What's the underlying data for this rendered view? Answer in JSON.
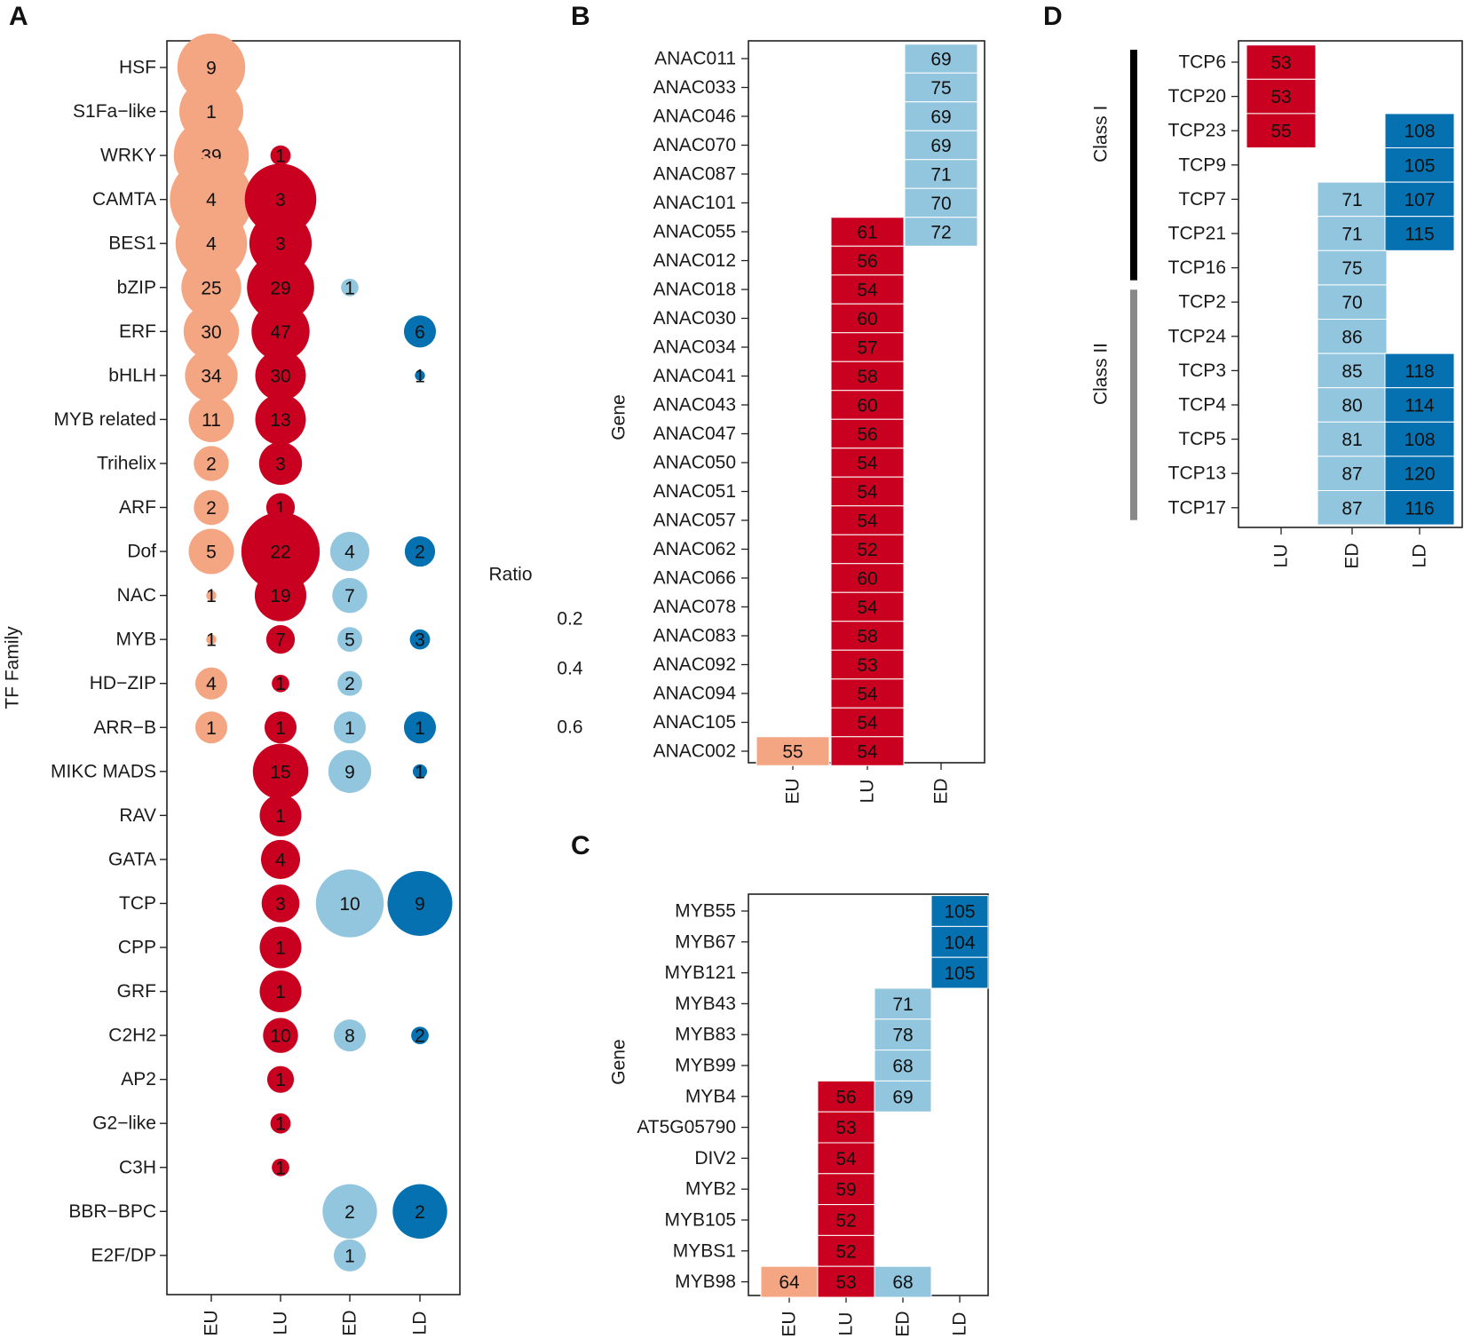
{
  "colors": {
    "EU": "#f4a582",
    "LU": "#ca0020",
    "ED": "#92c5de",
    "LD": "#0571b0"
  },
  "chart_data": [
    {
      "panel": "A",
      "type": "scatter",
      "subtype": "bubble",
      "ylabel": "TF Family",
      "xlabel": "",
      "size_legend_title": "Ratio",
      "size_legend_values": [
        "0.2",
        "0.4",
        "0.6"
      ],
      "x_categories": [
        "EU",
        "LU",
        "ED",
        "LD"
      ],
      "y_categories": [
        "HSF",
        "S1Fa−like",
        "WRKY",
        "CAMTA",
        "BES1",
        "bZIP",
        "ERF",
        "bHLH",
        "MYB related",
        "Trihelix",
        "ARF",
        "Dof",
        "NAC",
        "MYB",
        "HD−ZIP",
        "ARR−B",
        "MIKC MADS",
        "RAV",
        "GATA",
        "TCP",
        "CPP",
        "GRF",
        "C2H2",
        "AP2",
        "G2−like",
        "C3H",
        "BBR−BPC",
        "E2F/DP"
      ],
      "points": [
        {
          "x": "EU",
          "y": "HSF",
          "label": "9",
          "ratio": 0.45
        },
        {
          "x": "EU",
          "y": "S1Fa−like",
          "label": "1",
          "ratio": 0.4
        },
        {
          "x": "EU",
          "y": "WRKY",
          "label": "39",
          "ratio": 0.55
        },
        {
          "x": "LU",
          "y": "WRKY",
          "label": "1",
          "ratio": 0.04
        },
        {
          "x": "EU",
          "y": "CAMTA",
          "label": "4",
          "ratio": 0.67
        },
        {
          "x": "LU",
          "y": "CAMTA",
          "label": "3",
          "ratio": 0.5
        },
        {
          "x": "EU",
          "y": "BES1",
          "label": "4",
          "ratio": 0.5
        },
        {
          "x": "LU",
          "y": "BES1",
          "label": "3",
          "ratio": 0.38
        },
        {
          "x": "EU",
          "y": "bZIP",
          "label": "25",
          "ratio": 0.35
        },
        {
          "x": "LU",
          "y": "bZIP",
          "label": "29",
          "ratio": 0.44
        },
        {
          "x": "ED",
          "y": "bZIP",
          "label": "1",
          "ratio": 0.03
        },
        {
          "x": "EU",
          "y": "ERF",
          "label": "30",
          "ratio": 0.3
        },
        {
          "x": "LU",
          "y": "ERF",
          "label": "47",
          "ratio": 0.33
        },
        {
          "x": "LD",
          "y": "ERF",
          "label": "6",
          "ratio": 0.1
        },
        {
          "x": "EU",
          "y": "bHLH",
          "label": "34",
          "ratio": 0.27
        },
        {
          "x": "LU",
          "y": "bHLH",
          "label": "30",
          "ratio": 0.25
        },
        {
          "x": "LD",
          "y": "bHLH",
          "label": "1",
          "ratio": 0.01
        },
        {
          "x": "EU",
          "y": "MYB related",
          "label": "11",
          "ratio": 0.2
        },
        {
          "x": "LU",
          "y": "MYB related",
          "label": "13",
          "ratio": 0.25
        },
        {
          "x": "EU",
          "y": "Trihelix",
          "label": "2",
          "ratio": 0.12
        },
        {
          "x": "LU",
          "y": "Trihelix",
          "label": "3",
          "ratio": 0.18
        },
        {
          "x": "EU",
          "y": "ARF",
          "label": "2",
          "ratio": 0.12
        },
        {
          "x": "LU",
          "y": "ARF",
          "label": "1",
          "ratio": 0.08
        },
        {
          "x": "EU",
          "y": "Dof",
          "label": "5",
          "ratio": 0.2
        },
        {
          "x": "LU",
          "y": "Dof",
          "label": "22",
          "ratio": 0.6
        },
        {
          "x": "ED",
          "y": "Dof",
          "label": "4",
          "ratio": 0.15
        },
        {
          "x": "LD",
          "y": "Dof",
          "label": "2",
          "ratio": 0.09
        },
        {
          "x": "EU",
          "y": "NAC",
          "label": "1",
          "ratio": 0.01
        },
        {
          "x": "LU",
          "y": "NAC",
          "label": "19",
          "ratio": 0.26
        },
        {
          "x": "ED",
          "y": "NAC",
          "label": "7",
          "ratio": 0.12
        },
        {
          "x": "EU",
          "y": "MYB",
          "label": "1",
          "ratio": 0.01
        },
        {
          "x": "LU",
          "y": "MYB",
          "label": "7",
          "ratio": 0.08
        },
        {
          "x": "ED",
          "y": "MYB",
          "label": "5",
          "ratio": 0.06
        },
        {
          "x": "LD",
          "y": "MYB",
          "label": "3",
          "ratio": 0.04
        },
        {
          "x": "EU",
          "y": "HD−ZIP",
          "label": "4",
          "ratio": 0.1
        },
        {
          "x": "LU",
          "y": "HD−ZIP",
          "label": "1",
          "ratio": 0.03
        },
        {
          "x": "ED",
          "y": "HD−ZIP",
          "label": "2",
          "ratio": 0.06
        },
        {
          "x": "EU",
          "y": "ARR−B",
          "label": "1",
          "ratio": 0.1
        },
        {
          "x": "LU",
          "y": "ARR−B",
          "label": "1",
          "ratio": 0.1
        },
        {
          "x": "ED",
          "y": "ARR−B",
          "label": "1",
          "ratio": 0.1
        },
        {
          "x": "LD",
          "y": "ARR−B",
          "label": "1",
          "ratio": 0.1
        },
        {
          "x": "LU",
          "y": "MIKC MADS",
          "label": "15",
          "ratio": 0.3
        },
        {
          "x": "ED",
          "y": "MIKC MADS",
          "label": "9",
          "ratio": 0.18
        },
        {
          "x": "LD",
          "y": "MIKC MADS",
          "label": "1",
          "ratio": 0.02
        },
        {
          "x": "LU",
          "y": "RAV",
          "label": "1",
          "ratio": 0.17
        },
        {
          "x": "LU",
          "y": "GATA",
          "label": "4",
          "ratio": 0.15
        },
        {
          "x": "LU",
          "y": "TCP",
          "label": "3",
          "ratio": 0.14
        },
        {
          "x": "ED",
          "y": "TCP",
          "label": "10",
          "ratio": 0.45
        },
        {
          "x": "LD",
          "y": "TCP",
          "label": "9",
          "ratio": 0.41
        },
        {
          "x": "LU",
          "y": "CPP",
          "label": "1",
          "ratio": 0.17
        },
        {
          "x": "LU",
          "y": "GRF",
          "label": "1",
          "ratio": 0.17
        },
        {
          "x": "LU",
          "y": "C2H2",
          "label": "10",
          "ratio": 0.12
        },
        {
          "x": "ED",
          "y": "C2H2",
          "label": "8",
          "ratio": 0.1
        },
        {
          "x": "LD",
          "y": "C2H2",
          "label": "2",
          "ratio": 0.03
        },
        {
          "x": "LU",
          "y": "AP2",
          "label": "1",
          "ratio": 0.07
        },
        {
          "x": "LU",
          "y": "G2−like",
          "label": "1",
          "ratio": 0.04
        },
        {
          "x": "LU",
          "y": "C3H",
          "label": "1",
          "ratio": 0.03
        },
        {
          "x": "ED",
          "y": "BBR−BPC",
          "label": "2",
          "ratio": 0.29
        },
        {
          "x": "LD",
          "y": "BBR−BPC",
          "label": "2",
          "ratio": 0.29
        },
        {
          "x": "ED",
          "y": "E2F/DP",
          "label": "1",
          "ratio": 0.1
        }
      ]
    },
    {
      "panel": "B",
      "type": "heatmap",
      "ylabel": "Gene",
      "x_categories": [
        "EU",
        "LU",
        "ED"
      ],
      "y_categories": [
        "ANAC011",
        "ANAC033",
        "ANAC046",
        "ANAC070",
        "ANAC087",
        "ANAC101",
        "ANAC055",
        "ANAC012",
        "ANAC018",
        "ANAC030",
        "ANAC034",
        "ANAC041",
        "ANAC043",
        "ANAC047",
        "ANAC050",
        "ANAC051",
        "ANAC057",
        "ANAC062",
        "ANAC066",
        "ANAC078",
        "ANAC083",
        "ANAC092",
        "ANAC094",
        "ANAC105",
        "ANAC002"
      ],
      "cells": [
        {
          "x": "ED",
          "y": "ANAC011",
          "value": "69"
        },
        {
          "x": "ED",
          "y": "ANAC033",
          "value": "75"
        },
        {
          "x": "ED",
          "y": "ANAC046",
          "value": "69"
        },
        {
          "x": "ED",
          "y": "ANAC070",
          "value": "69"
        },
        {
          "x": "ED",
          "y": "ANAC087",
          "value": "71"
        },
        {
          "x": "ED",
          "y": "ANAC101",
          "value": "70"
        },
        {
          "x": "ED",
          "y": "ANAC055",
          "value": "72"
        },
        {
          "x": "LU",
          "y": "ANAC055",
          "value": "61"
        },
        {
          "x": "LU",
          "y": "ANAC012",
          "value": "56"
        },
        {
          "x": "LU",
          "y": "ANAC018",
          "value": "54"
        },
        {
          "x": "LU",
          "y": "ANAC030",
          "value": "60"
        },
        {
          "x": "LU",
          "y": "ANAC034",
          "value": "57"
        },
        {
          "x": "LU",
          "y": "ANAC041",
          "value": "58"
        },
        {
          "x": "LU",
          "y": "ANAC043",
          "value": "60"
        },
        {
          "x": "LU",
          "y": "ANAC047",
          "value": "56"
        },
        {
          "x": "LU",
          "y": "ANAC050",
          "value": "54"
        },
        {
          "x": "LU",
          "y": "ANAC051",
          "value": "54"
        },
        {
          "x": "LU",
          "y": "ANAC057",
          "value": "54"
        },
        {
          "x": "LU",
          "y": "ANAC062",
          "value": "52"
        },
        {
          "x": "LU",
          "y": "ANAC066",
          "value": "60"
        },
        {
          "x": "LU",
          "y": "ANAC078",
          "value": "54"
        },
        {
          "x": "LU",
          "y": "ANAC083",
          "value": "58"
        },
        {
          "x": "LU",
          "y": "ANAC092",
          "value": "53"
        },
        {
          "x": "LU",
          "y": "ANAC094",
          "value": "54"
        },
        {
          "x": "LU",
          "y": "ANAC105",
          "value": "54"
        },
        {
          "x": "LU",
          "y": "ANAC002",
          "value": "54"
        },
        {
          "x": "EU",
          "y": "ANAC002",
          "value": "55"
        }
      ]
    },
    {
      "panel": "C",
      "type": "heatmap",
      "ylabel": "Gene",
      "x_categories": [
        "EU",
        "LU",
        "ED",
        "LD"
      ],
      "y_categories": [
        "MYB55",
        "MYB67",
        "MYB121",
        "MYB43",
        "MYB83",
        "MYB99",
        "MYB4",
        "AT5G05790",
        "DIV2",
        "MYB2",
        "MYB105",
        "MYBS1",
        "MYB98"
      ],
      "cells": [
        {
          "x": "LD",
          "y": "MYB55",
          "value": "105"
        },
        {
          "x": "LD",
          "y": "MYB67",
          "value": "104"
        },
        {
          "x": "LD",
          "y": "MYB121",
          "value": "105"
        },
        {
          "x": "ED",
          "y": "MYB43",
          "value": "71"
        },
        {
          "x": "ED",
          "y": "MYB83",
          "value": "78"
        },
        {
          "x": "ED",
          "y": "MYB99",
          "value": "68"
        },
        {
          "x": "ED",
          "y": "MYB4",
          "value": "69"
        },
        {
          "x": "LU",
          "y": "MYB4",
          "value": "56"
        },
        {
          "x": "LU",
          "y": "AT5G05790",
          "value": "53"
        },
        {
          "x": "LU",
          "y": "DIV2",
          "value": "54"
        },
        {
          "x": "LU",
          "y": "MYB2",
          "value": "59"
        },
        {
          "x": "LU",
          "y": "MYB105",
          "value": "52"
        },
        {
          "x": "LU",
          "y": "MYBS1",
          "value": "52"
        },
        {
          "x": "EU",
          "y": "MYB98",
          "value": "64"
        },
        {
          "x": "LU",
          "y": "MYB98",
          "value": "53"
        },
        {
          "x": "ED",
          "y": "MYB98",
          "value": "68"
        }
      ]
    },
    {
      "panel": "D",
      "type": "heatmap",
      "ylabel": "",
      "x_categories": [
        "LU",
        "ED",
        "LD"
      ],
      "y_categories": [
        "TCP6",
        "TCP20",
        "TCP23",
        "TCP9",
        "TCP7",
        "TCP21",
        "TCP16",
        "TCP2",
        "TCP24",
        "TCP3",
        "TCP4",
        "TCP5",
        "TCP13",
        "TCP17"
      ],
      "groups": [
        {
          "label": "Class I",
          "from": "TCP6",
          "to": "TCP16"
        },
        {
          "label": "Class II",
          "from": "TCP2",
          "to": "TCP17"
        }
      ],
      "cells": [
        {
          "x": "LU",
          "y": "TCP6",
          "value": "53"
        },
        {
          "x": "LU",
          "y": "TCP20",
          "value": "53"
        },
        {
          "x": "LU",
          "y": "TCP23",
          "value": "55"
        },
        {
          "x": "LD",
          "y": "TCP23",
          "value": "108"
        },
        {
          "x": "LD",
          "y": "TCP9",
          "value": "105"
        },
        {
          "x": "ED",
          "y": "TCP7",
          "value": "71"
        },
        {
          "x": "LD",
          "y": "TCP7",
          "value": "107"
        },
        {
          "x": "ED",
          "y": "TCP21",
          "value": "71"
        },
        {
          "x": "LD",
          "y": "TCP21",
          "value": "115"
        },
        {
          "x": "ED",
          "y": "TCP16",
          "value": "75"
        },
        {
          "x": "ED",
          "y": "TCP2",
          "value": "70"
        },
        {
          "x": "ED",
          "y": "TCP24",
          "value": "86"
        },
        {
          "x": "ED",
          "y": "TCP3",
          "value": "85"
        },
        {
          "x": "LD",
          "y": "TCP3",
          "value": "118"
        },
        {
          "x": "ED",
          "y": "TCP4",
          "value": "80"
        },
        {
          "x": "LD",
          "y": "TCP4",
          "value": "114"
        },
        {
          "x": "ED",
          "y": "TCP5",
          "value": "81"
        },
        {
          "x": "LD",
          "y": "TCP5",
          "value": "108"
        },
        {
          "x": "ED",
          "y": "TCP13",
          "value": "87"
        },
        {
          "x": "LD",
          "y": "TCP13",
          "value": "120"
        },
        {
          "x": "ED",
          "y": "TCP17",
          "value": "87"
        },
        {
          "x": "LD",
          "y": "TCP17",
          "value": "116"
        }
      ]
    }
  ]
}
